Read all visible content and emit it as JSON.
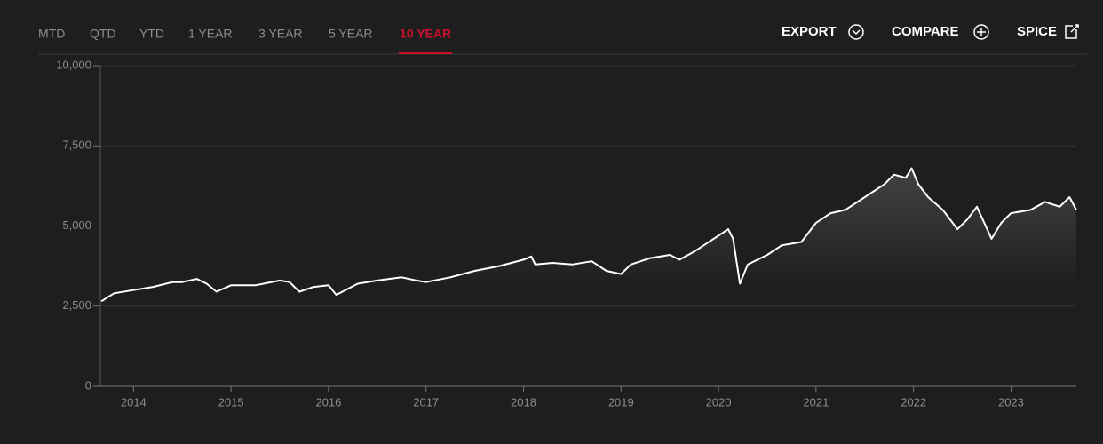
{
  "tabs": [
    "MTD",
    "QTD",
    "YTD",
    "1 YEAR",
    "3 YEAR",
    "5 YEAR",
    "10 YEAR"
  ],
  "active_tab": 6,
  "actions": [
    "EXPORT",
    "COMPARE",
    "SPICE"
  ],
  "chart_data": {
    "type": "line",
    "x": [
      2013.67,
      2013.8,
      2014.0,
      2014.2,
      2014.4,
      2014.5,
      2014.65,
      2014.75,
      2014.85,
      2015.0,
      2015.25,
      2015.5,
      2015.6,
      2015.7,
      2015.85,
      2016.0,
      2016.08,
      2016.3,
      2016.5,
      2016.75,
      2016.9,
      2017.0,
      2017.25,
      2017.5,
      2017.75,
      2018.0,
      2018.08,
      2018.12,
      2018.3,
      2018.5,
      2018.7,
      2018.85,
      2019.0,
      2019.1,
      2019.3,
      2019.5,
      2019.6,
      2019.75,
      2020.0,
      2020.1,
      2020.15,
      2020.22,
      2020.3,
      2020.5,
      2020.65,
      2020.85,
      2021.0,
      2021.15,
      2021.3,
      2021.5,
      2021.7,
      2021.8,
      2021.92,
      2021.98,
      2022.05,
      2022.15,
      2022.3,
      2022.45,
      2022.55,
      2022.65,
      2022.8,
      2022.9,
      2023.0,
      2023.2,
      2023.35,
      2023.5,
      2023.6,
      2023.67
    ],
    "series": [
      {
        "color": "#ffffff",
        "values": [
          2650,
          2900,
          3000,
          3100,
          3250,
          3250,
          3350,
          3200,
          2950,
          3150,
          3150,
          3300,
          3250,
          2950,
          3100,
          3150,
          2850,
          3200,
          3300,
          3400,
          3300,
          3250,
          3400,
          3600,
          3750,
          3950,
          4050,
          3800,
          3850,
          3800,
          3900,
          3600,
          3500,
          3800,
          4000,
          4100,
          3950,
          4200,
          4700,
          4900,
          4600,
          3200,
          3800,
          4100,
          4400,
          4500,
          5100,
          5400,
          5500,
          5900,
          6300,
          6600,
          6500,
          6800,
          6300,
          5900,
          5500,
          4900,
          5200,
          5600,
          4600,
          5100,
          5400,
          5500,
          5750,
          5600,
          5900,
          5500
        ]
      }
    ],
    "xlim": [
      2013.66,
      2023.67
    ],
    "xticks": [
      2014,
      2015,
      2016,
      2017,
      2018,
      2019,
      2020,
      2021,
      2022,
      2023
    ],
    "ylim": [
      0,
      10000
    ],
    "yticks": [
      0,
      {
        "value": 2500,
        "label": "2,500"
      },
      {
        "value": 5000,
        "label": "5,000"
      },
      {
        "value": 7500,
        "label": "7,500"
      },
      {
        "value": 10000,
        "label": "10,000"
      }
    ],
    "grid": true
  }
}
